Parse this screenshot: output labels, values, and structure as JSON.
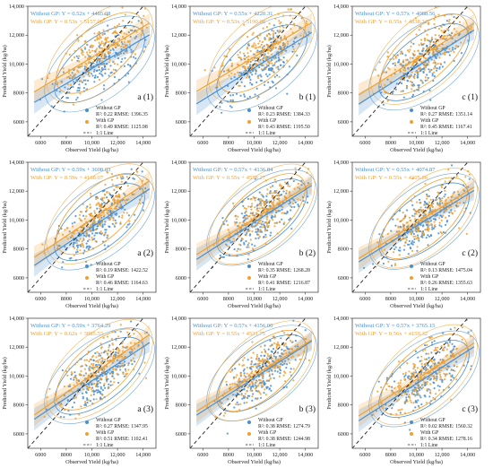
{
  "colors": {
    "without": "#4a8fd0",
    "with": "#f0a030",
    "line11": "#222222"
  },
  "shared": {
    "xlabel": "Observed Yield (kg/ha)",
    "ylabel": "Predicted Yield (kg/ha)",
    "x_ticks": [
      "6000",
      "8000",
      "10,000",
      "12,000",
      "14,000"
    ],
    "y_ticks": [
      "6000",
      "8000",
      "10,000",
      "12,000",
      "14,000"
    ],
    "legend_without": "Without GP",
    "legend_with": "With GP",
    "legend_line": "1:1 Line"
  },
  "chart_data": [
    {
      "type": "scatter",
      "panel": "a (1)",
      "eq_without": "Without GP: Y = 0.52x + 4485.38",
      "eq_with": "With      GP: Y = 0.53x + 5157.08",
      "stat_without": "R²: 0.22  RMSE: 1396.35",
      "stat_with": "R²: 0.49  RMSE: 1125.98",
      "xlim": [
        5000,
        15000
      ],
      "ylim": [
        5000,
        14000
      ],
      "series": [
        {
          "name": "Without GP",
          "slope": 0.52,
          "intercept": 4485.38
        },
        {
          "name": "With GP",
          "slope": 0.53,
          "intercept": 5157.08
        }
      ]
    },
    {
      "type": "scatter",
      "panel": "b (1)",
      "eq_without": "Without GP: Y = 0.55x + 4220.31",
      "eq_with": "With      GP: Y = 0.53x + 5190.08",
      "stat_without": "R²: 0.23  RMSE: 1384.33",
      "stat_with": "R²: 0.43  RMSE: 1195.50",
      "xlim": [
        5000,
        15000
      ],
      "ylim": [
        5000,
        14000
      ],
      "series": [
        {
          "name": "Without GP",
          "slope": 0.55,
          "intercept": 4220.31
        },
        {
          "name": "With GP",
          "slope": 0.53,
          "intercept": 5190.08
        }
      ]
    },
    {
      "type": "scatter",
      "panel": "c (1)",
      "eq_without": "Without GP: Y = 0.57x + 4088.56",
      "eq_with": "With      GP: Y = 0.55x + 4838.32",
      "stat_without": "R²: 0.27  RMSE: 1351.14",
      "stat_with": "R²: 0.45  RMSE: 1167.41",
      "xlim": [
        5000,
        15000
      ],
      "ylim": [
        5000,
        14000
      ],
      "series": [
        {
          "name": "Without GP",
          "slope": 0.57,
          "intercept": 4088.56
        },
        {
          "name": "With GP",
          "slope": 0.55,
          "intercept": 4838.32
        }
      ]
    },
    {
      "type": "scatter",
      "panel": "a (2)",
      "eq_without": "Without GP: Y = 0.59x + 3608.03",
      "eq_with": "With      GP: Y = 0.59x + 4168.07",
      "stat_without": "R²: 0.19  RMSE: 1422.52",
      "stat_with": "R²: 0.46  RMSE: 1164.63",
      "xlim": [
        5000,
        15000
      ],
      "ylim": [
        5000,
        14000
      ],
      "series": [
        {
          "name": "Without GP",
          "slope": 0.59,
          "intercept": 3608.03
        },
        {
          "name": "With GP",
          "slope": 0.59,
          "intercept": 4168.07
        }
      ]
    },
    {
      "type": "scatter",
      "panel": "b (2)",
      "eq_without": "Without GP: Y = 0.57x + 4136.84",
      "eq_with": "With      GP: Y = 0.55x + 4578.27",
      "stat_without": "R²: 0.35  RMSE: 1268.28",
      "stat_with": "R²: 0.41  RMSE: 1216.87",
      "xlim": [
        5000,
        15000
      ],
      "ylim": [
        5000,
        14000
      ],
      "series": [
        {
          "name": "Without GP",
          "slope": 0.57,
          "intercept": 4136.84
        },
        {
          "name": "With GP",
          "slope": 0.55,
          "intercept": 4578.27
        }
      ]
    },
    {
      "type": "scatter",
      "panel": "c (2)",
      "eq_without": "Without GP: Y = 0.55x + 4074.87",
      "eq_with": "With      GP: Y = 0.55x + 4305.86",
      "stat_without": "R²: 0.13  RMSE: 1475.04",
      "stat_with": "R²: 0.26  RMSE: 1355.63",
      "xlim": [
        5000,
        15000
      ],
      "ylim": [
        5000,
        14000
      ],
      "series": [
        {
          "name": "Without GP",
          "slope": 0.55,
          "intercept": 4074.87
        },
        {
          "name": "With GP",
          "slope": 0.55,
          "intercept": 4305.86
        }
      ]
    },
    {
      "type": "scatter",
      "panel": "a (3)",
      "eq_without": "Without GP: Y = 0.59x + 3764.29",
      "eq_with": "With      GP: Y = 0.62x + 3885.53",
      "stat_without": "R²: 0.27  RMSE: 1347.95",
      "stat_with": "R²: 0.51  RMSE: 1102.41",
      "xlim": [
        5000,
        15000
      ],
      "ylim": [
        5000,
        14000
      ],
      "series": [
        {
          "name": "Without GP",
          "slope": 0.59,
          "intercept": 3764.29
        },
        {
          "name": "With GP",
          "slope": 0.62,
          "intercept": 3885.53
        }
      ]
    },
    {
      "type": "scatter",
      "panel": "b (3)",
      "eq_without": "Without GP: Y = 0.57x + 4156.00",
      "eq_with": "With      GP: Y = 0.55x + 4531.75",
      "stat_without": "R²: 0.38  RMSE: 1274.79",
      "stat_with": "R²: 0.38  RMSE: 1244.98",
      "xlim": [
        5000,
        15000
      ],
      "ylim": [
        5000,
        14000
      ],
      "series": [
        {
          "name": "Without GP",
          "slope": 0.57,
          "intercept": 4156.0
        },
        {
          "name": "With GP",
          "slope": 0.55,
          "intercept": 4531.75
        }
      ]
    },
    {
      "type": "scatter",
      "panel": "c (3)",
      "eq_without": "Without GP: Y = 0.57x + 3765.15",
      "eq_with": "With      GP: Y = 0.56x + 4159.32",
      "stat_without": "R²: 0.02  RMSE: 1560.32",
      "stat_with": "R²: 0.34  RMSE: 1278.16",
      "xlim": [
        5000,
        15000
      ],
      "ylim": [
        5000,
        14000
      ],
      "series": [
        {
          "name": "Without GP",
          "slope": 0.57,
          "intercept": 3765.15
        },
        {
          "name": "With GP",
          "slope": 0.56,
          "intercept": 4159.32
        }
      ]
    }
  ]
}
